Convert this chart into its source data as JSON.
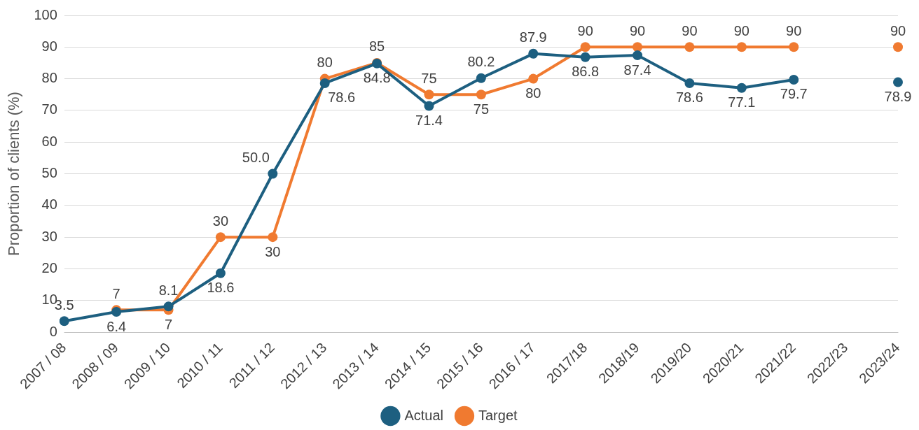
{
  "chart_data": {
    "type": "line",
    "ylabel": "Proportion of clients (%)",
    "categories": [
      "2007 / 08",
      "2008 / 09",
      "2009 / 10",
      "2010 / 11",
      "2011 / 12",
      "2012 / 13",
      "2013 / 14",
      "2014 / 15",
      "2015 / 16",
      "2016 / 17",
      "2017/18",
      "2018/19",
      "2019/20",
      "2020/21",
      "2021/22",
      "2022/23",
      "2023/24"
    ],
    "series": [
      {
        "name": "Actual",
        "color": "#1d5f80",
        "values": [
          3.5,
          6.4,
          8.1,
          18.6,
          50.0,
          78.6,
          84.8,
          71.4,
          80.2,
          87.9,
          86.8,
          87.4,
          78.6,
          77.1,
          79.7,
          null,
          78.9
        ],
        "value_labels": [
          "3.5",
          "6.4",
          "8.1",
          "18.6",
          "50.0",
          "78.6",
          "84.8",
          "71.4",
          "80.2",
          "87.9",
          "86.8",
          "87.4",
          "78.6",
          "77.1",
          "79.7",
          null,
          "78.9"
        ]
      },
      {
        "name": "Target",
        "color": "#f07a30",
        "values": [
          null,
          7,
          7,
          30,
          30,
          80,
          85,
          75,
          75,
          80,
          90,
          90,
          90,
          90,
          90,
          null,
          90
        ],
        "value_labels": [
          null,
          "7",
          "7",
          "30",
          "30",
          "80",
          "85",
          "75",
          "75",
          "80",
          "90",
          "90",
          "90",
          "90",
          "90",
          null,
          "90"
        ]
      }
    ],
    "ylim": [
      0,
      100
    ],
    "yticks": [
      0,
      10,
      20,
      30,
      40,
      50,
      60,
      70,
      80,
      90,
      100
    ],
    "grid": "y",
    "legend": "bottom",
    "marker": "circle",
    "line_style": "solid"
  }
}
